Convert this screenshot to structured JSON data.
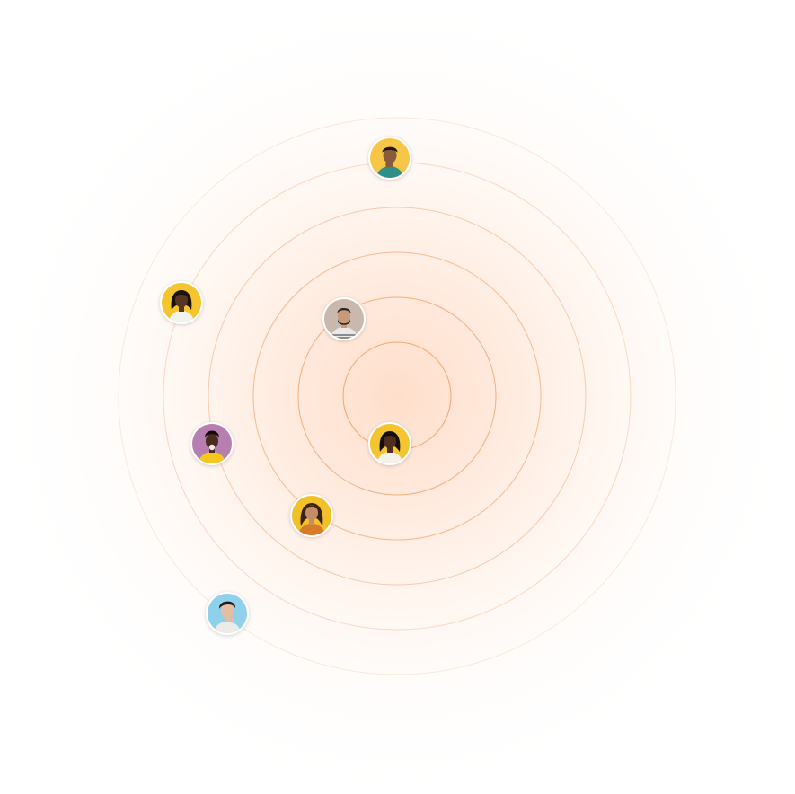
{
  "colors": {
    "ring": "#f29a5c",
    "glow": "#ffc4a0",
    "border": "#ffffff"
  },
  "avatars": [
    {
      "name": "avatar-1",
      "bg": "#f8c646",
      "skin": "#8a5a3c",
      "hair": "#1f1612",
      "shirt": "#2f8f86"
    },
    {
      "name": "avatar-2",
      "bg": "#f4c52f",
      "skin": "#5a3422",
      "hair": "#1a100c",
      "shirt": "#f2f2ee"
    },
    {
      "name": "avatar-3",
      "bg": "#c8b8ad",
      "skin": "#c99a78",
      "hair": "#2b2119",
      "shirt": "#e9e9e9"
    },
    {
      "name": "avatar-4",
      "bg": "#b67fb0",
      "skin": "#4a2c1e",
      "hair": "#120c0a",
      "shirt": "#f3c720"
    },
    {
      "name": "avatar-5",
      "bg": "#f4c52f",
      "skin": "#4f2e1f",
      "hair": "#150d0a",
      "shirt": "#f4f1ea"
    },
    {
      "name": "avatar-6",
      "bg": "#f2c028",
      "skin": "#c58c6a",
      "hair": "#3a2217",
      "shirt": "#d9792a"
    },
    {
      "name": "avatar-7",
      "bg": "#8fd0ea",
      "skin": "#e6bda2",
      "hair": "#1c1a1a",
      "shirt": "#ecebe8"
    }
  ]
}
